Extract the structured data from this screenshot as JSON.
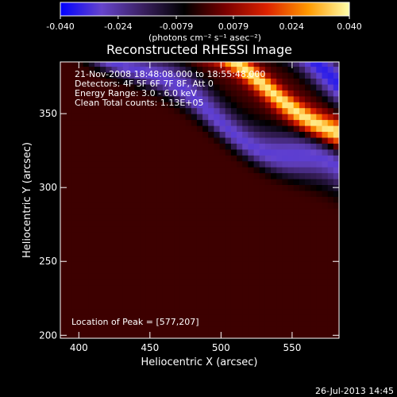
{
  "chart_data": {
    "type": "heatmap",
    "title": "Reconstructed RHESSI Image",
    "xlabel": "Heliocentric X (arcsec)",
    "ylabel": "Heliocentric Y (arcsec)",
    "xlim": [
      387,
      583
    ],
    "ylim": [
      198,
      385
    ],
    "x_ticks": [
      400,
      450,
      500,
      550
    ],
    "y_ticks": [
      200,
      250,
      300,
      350
    ],
    "colorbar": {
      "ticks": [
        "-0.040",
        "-0.024",
        "-0.0079",
        "0.0079",
        "0.024",
        "0.040"
      ],
      "range": [
        -0.04,
        0.04
      ],
      "unit_label": "(photons cm⁻² s⁻¹ asec⁻²)",
      "colors": [
        "#0000ff",
        "#6644cc",
        "#3a2060",
        "#000000",
        "#7a0000",
        "#dd2200",
        "#ff9900",
        "#ffffaa"
      ]
    },
    "annotations": [
      "21-Nov-2008 18:48:08.000 to 18:55:48.000",
      "Detectors: 4F 5F 6F 7F 8F, Att 0",
      "Energy Range: 3.0 - 6.0 keV",
      "Clean     Total counts: 1.13E+05"
    ],
    "peak_label": "Location of Peak = [577,207]",
    "peak": {
      "x": 577,
      "y": 207
    },
    "bands": [
      {
        "slope_y_per_x": -0.55,
        "intercept_at_x0": 640,
        "value": 0.035
      },
      {
        "slope_y_per_x": -0.55,
        "intercept_at_x0": 605,
        "value": -0.03
      },
      {
        "slope_y_per_x": -0.55,
        "intercept_at_x0": 570,
        "value": 0.03
      },
      {
        "slope_y_per_x": -0.55,
        "intercept_at_x0": 535,
        "value": -0.035
      },
      {
        "slope_y_per_x": -0.55,
        "intercept_at_x0": 500,
        "value": 0.038
      },
      {
        "slope_y_per_x": -0.55,
        "intercept_at_x0": 465,
        "value": -0.03
      }
    ]
  },
  "footer": {
    "timestamp": "26-Jul-2013 14:45"
  }
}
